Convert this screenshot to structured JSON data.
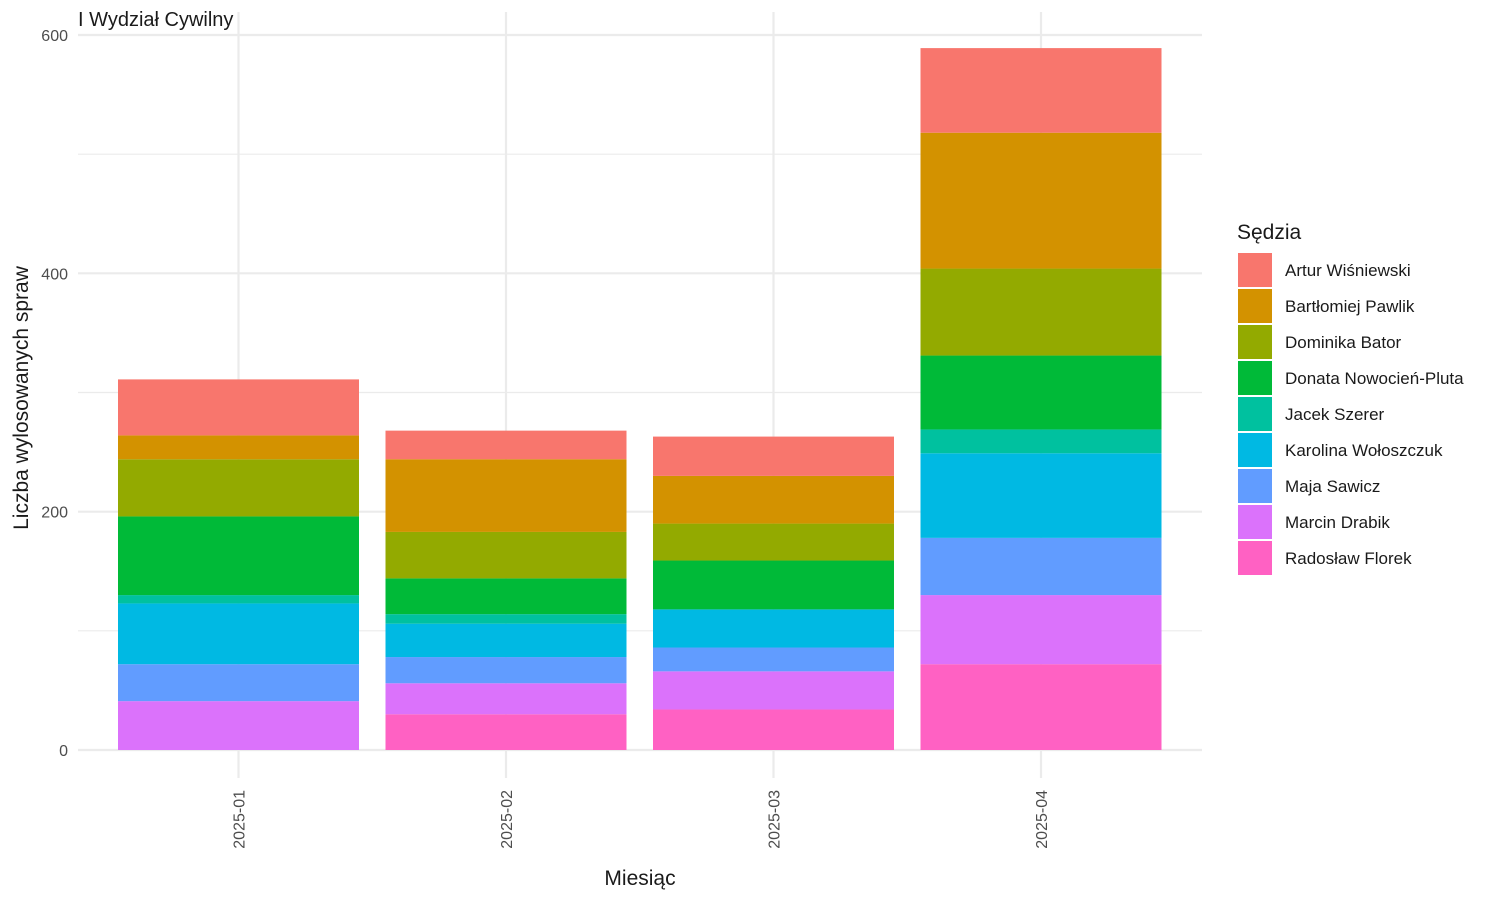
{
  "chart_data": {
    "type": "bar",
    "stacked": true,
    "title": "I Wydział Cywilny",
    "xlabel": "Miesiąc",
    "ylabel": "Liczba wylosowanych spraw",
    "ylim": [
      0,
      600
    ],
    "yticks": [
      0,
      200,
      400,
      600
    ],
    "grid": true,
    "legend_position": "right",
    "legend_title": "Sędzia",
    "categories": [
      "2025-01",
      "2025-02",
      "2025-03",
      "2025-04"
    ],
    "series": [
      {
        "name": "Artur Wiśniewski",
        "color": "#F8766D",
        "values": [
          47,
          24,
          33,
          71
        ]
      },
      {
        "name": "Bartłomiej Pawlik",
        "color": "#D39200",
        "values": [
          20,
          61,
          40,
          114
        ]
      },
      {
        "name": "Dominika Bator",
        "color": "#93AA00",
        "values": [
          48,
          39,
          31,
          73
        ]
      },
      {
        "name": "Donata Nowocień-Pluta",
        "color": "#00BA38",
        "values": [
          66,
          30,
          41,
          62
        ]
      },
      {
        "name": "Jacek Szerer",
        "color": "#00C19F",
        "values": [
          7,
          8,
          0,
          20
        ]
      },
      {
        "name": "Karolina Wołoszczuk",
        "color": "#00B9E3",
        "values": [
          51,
          28,
          32,
          71
        ]
      },
      {
        "name": "Maja Sawicz",
        "color": "#619CFF",
        "values": [
          31,
          22,
          20,
          48
        ]
      },
      {
        "name": "Marcin Drabik",
        "color": "#DB72FB",
        "values": [
          41,
          26,
          32,
          58
        ]
      },
      {
        "name": "Radosław Florek",
        "color": "#FF61C3",
        "values": [
          0,
          30,
          34,
          72
        ]
      }
    ]
  }
}
